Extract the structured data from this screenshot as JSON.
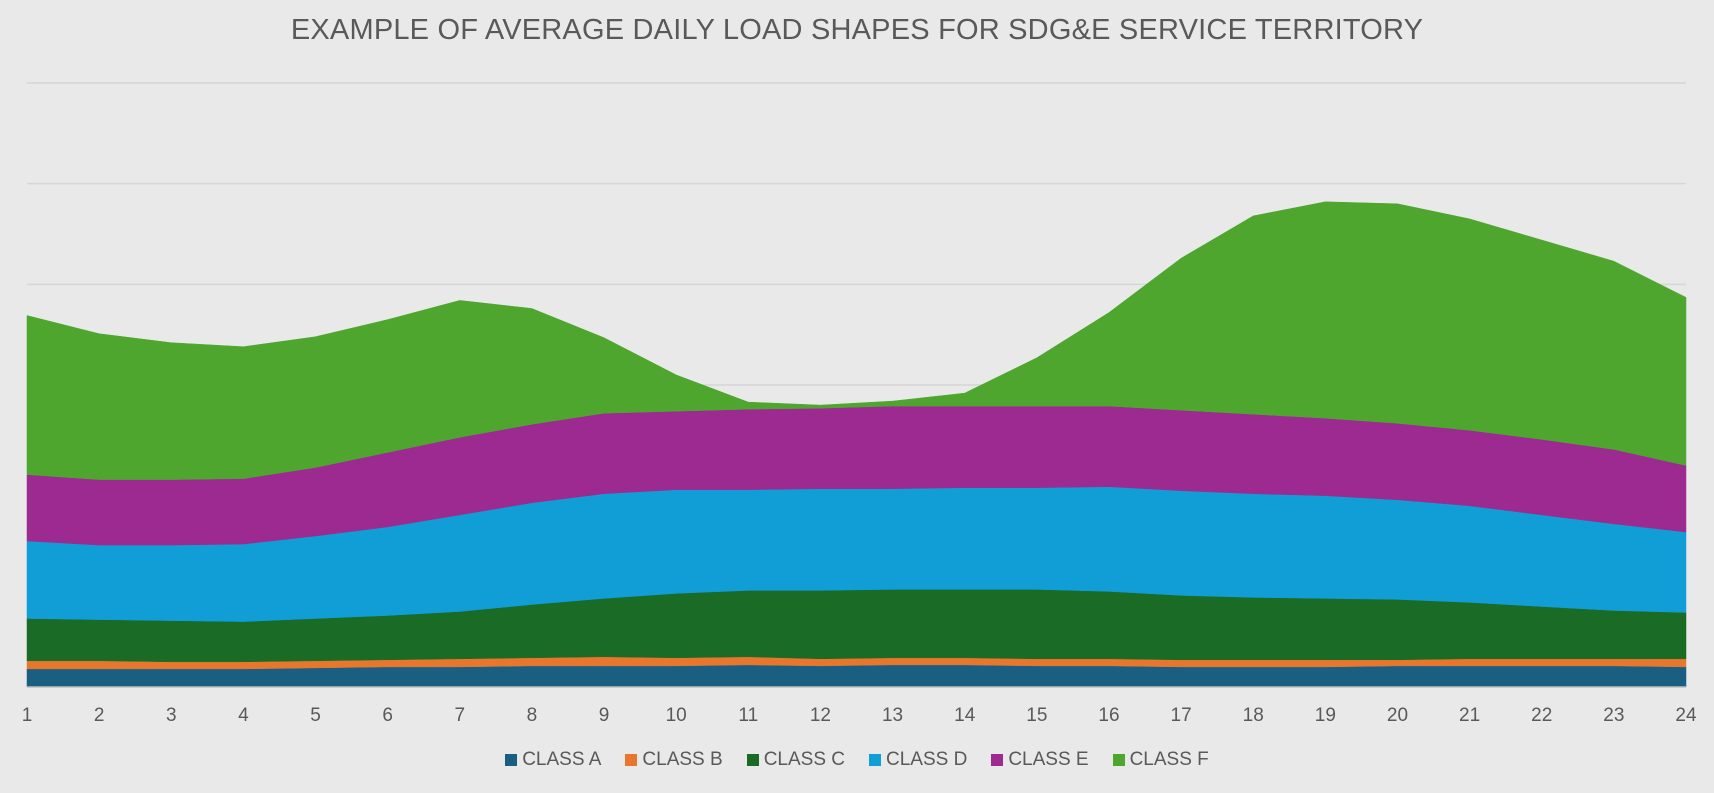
{
  "chart_data": {
    "type": "area",
    "stacked": true,
    "title": "EXAMPLE OF AVERAGE DAILY LOAD SHAPES FOR SDG&E SERVICE TERRITORY",
    "xlabel": "",
    "ylabel": "",
    "x": [
      1,
      2,
      3,
      4,
      5,
      6,
      7,
      8,
      9,
      10,
      11,
      12,
      13,
      14,
      15,
      16,
      17,
      18,
      19,
      20,
      21,
      22,
      23,
      24
    ],
    "ylim": [
      0,
      600
    ],
    "grid": true,
    "legend_position": "bottom",
    "series": [
      {
        "name": "CLASS A",
        "color": "#1a5e82",
        "values": [
          18,
          18,
          18,
          18,
          19,
          20,
          20,
          21,
          21,
          21,
          22,
          21,
          22,
          22,
          21,
          21,
          20,
          20,
          20,
          21,
          21,
          21,
          21,
          20
        ]
      },
      {
        "name": "CLASS B",
        "color": "#e8762d",
        "values": [
          8,
          8,
          7,
          7,
          7,
          7,
          8,
          8,
          9,
          8,
          8,
          7,
          7,
          7,
          7,
          7,
          7,
          7,
          7,
          6,
          7,
          7,
          7,
          8
        ]
      },
      {
        "name": "CLASS C",
        "color": "#1a6b25",
        "values": [
          42,
          41,
          41,
          40,
          42,
          44,
          47,
          53,
          58,
          64,
          66,
          68,
          68,
          68,
          69,
          67,
          64,
          62,
          61,
          60,
          56,
          52,
          48,
          46
        ]
      },
      {
        "name": "CLASS D",
        "color": "#119dd6",
        "values": [
          77,
          74,
          75,
          77,
          82,
          88,
          96,
          101,
          104,
          103,
          100,
          101,
          100,
          101,
          101,
          104,
          104,
          103,
          102,
          99,
          96,
          91,
          86,
          80
        ]
      },
      {
        "name": "CLASS E",
        "color": "#9d2a91",
        "values": [
          66,
          65,
          65,
          65,
          68,
          74,
          77,
          78,
          80,
          78,
          80,
          80,
          82,
          81,
          81,
          80,
          80,
          79,
          77,
          76,
          75,
          75,
          74,
          66
        ]
      },
      {
        "name": "CLASS F",
        "color": "#4ea62f",
        "values": [
          158,
          145,
          136,
          131,
          130,
          132,
          136,
          115,
          75,
          36,
          7,
          3,
          5,
          13,
          48,
          93,
          151,
          197,
          215,
          218,
          210,
          198,
          187,
          167
        ]
      }
    ]
  }
}
